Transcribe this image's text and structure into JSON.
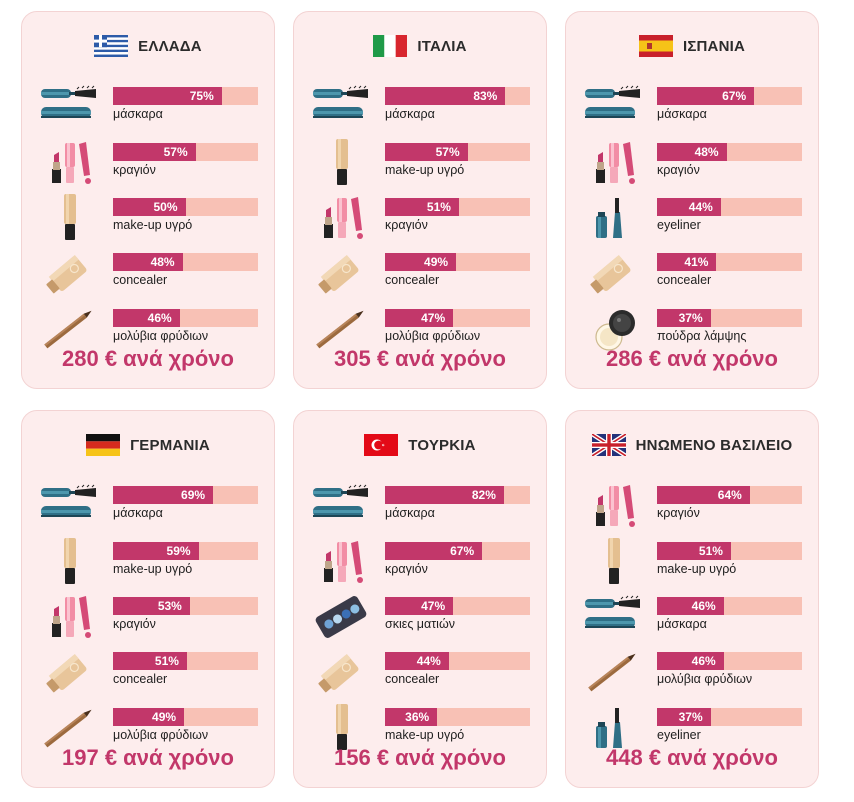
{
  "chart_data": [
    {
      "type": "bar",
      "title": "ΕΛΛΑΔΑ",
      "flag": "flag-greece",
      "categories": [
        "μάσκαρα",
        "κραγιόν",
        "make-up υγρό",
        "concealer",
        "μολύβια φρύδιων"
      ],
      "icons": [
        "mascara-icon",
        "lipstick-icon",
        "foundation-icon",
        "concealer-icon",
        "brow-pencil-icon"
      ],
      "values": [
        75,
        57,
        50,
        48,
        46
      ],
      "labels": [
        "75%",
        "57%",
        "50%",
        "48%",
        "46%"
      ],
      "ylim": [
        0,
        100
      ],
      "total": "280 € ανά χρόνο"
    },
    {
      "type": "bar",
      "title": "ΙΤΑΛΙΑ",
      "flag": "flag-italy",
      "categories": [
        "μάσκαρα",
        "make-up υγρό",
        "κραγιόν",
        "concealer",
        "μολύβια φρύδιων"
      ],
      "icons": [
        "mascara-icon",
        "foundation-icon",
        "lipstick-icon",
        "concealer-icon",
        "brow-pencil-icon"
      ],
      "values": [
        83,
        57,
        51,
        49,
        47
      ],
      "labels": [
        "83%",
        "57%",
        "51%",
        "49%",
        "47%"
      ],
      "ylim": [
        0,
        100
      ],
      "total": "305 € ανά χρόνο"
    },
    {
      "type": "bar",
      "title": "ΙΣΠΑΝΙΑ",
      "flag": "flag-spain",
      "categories": [
        "μάσκαρα",
        "κραγιόν",
        "eyeliner",
        "concealer",
        "πούδρα λάμψης"
      ],
      "icons": [
        "mascara-icon",
        "lipstick-icon",
        "eyeliner-icon",
        "concealer-icon",
        "powder-icon"
      ],
      "values": [
        67,
        48,
        44,
        41,
        37
      ],
      "labels": [
        "67%",
        "48%",
        "44%",
        "41%",
        "37%"
      ],
      "ylim": [
        0,
        100
      ],
      "total": "286 € ανά χρόνο"
    },
    {
      "type": "bar",
      "title": "ΓΕΡΜΑΝΙΑ",
      "flag": "flag-germany",
      "categories": [
        "μάσκαρα",
        "make-up υγρό",
        "κραγιόν",
        "concealer",
        "μολύβια φρύδιων"
      ],
      "icons": [
        "mascara-icon",
        "foundation-icon",
        "lipstick-icon",
        "concealer-icon",
        "brow-pencil-icon"
      ],
      "values": [
        69,
        59,
        53,
        51,
        49
      ],
      "labels": [
        "69%",
        "59%",
        "53%",
        "51%",
        "49%"
      ],
      "ylim": [
        0,
        100
      ],
      "total": "197 € ανά χρόνο"
    },
    {
      "type": "bar",
      "title": "ΤΟΥΡΚΙΑ",
      "flag": "flag-turkey",
      "categories": [
        "μάσκαρα",
        "κραγιόν",
        "σκιες ματιών",
        "concealer",
        "make-up υγρό"
      ],
      "icons": [
        "mascara-icon",
        "lipstick-icon",
        "eyeshadow-icon",
        "concealer-icon",
        "foundation-icon"
      ],
      "values": [
        82,
        67,
        47,
        44,
        36
      ],
      "labels": [
        "82%",
        "67%",
        "47%",
        "44%",
        "36%"
      ],
      "ylim": [
        0,
        100
      ],
      "total": "156 € ανά χρόνο"
    },
    {
      "type": "bar",
      "title": "ΗΝΩΜΕΝΟ ΒΑΣΙΛΕΙΟ",
      "flag": "flag-uk",
      "categories": [
        "κραγιόν",
        "make-up υγρό",
        "μάσκαρα",
        "μολύβια φρύδιων",
        "eyeliner"
      ],
      "icons": [
        "lipstick-icon",
        "foundation-icon",
        "mascara-icon",
        "brow-pencil-icon",
        "eyeliner-icon"
      ],
      "values": [
        64,
        51,
        46,
        46,
        37
      ],
      "labels": [
        "64%",
        "51%",
        "46%",
        "46%",
        "37%"
      ],
      "ylim": [
        0,
        100
      ],
      "total": "448 € ανά χρόνο"
    }
  ],
  "colors": {
    "card_background": "#fdeded",
    "bar_fill": "#c2376a",
    "bar_track": "#f8c1b5",
    "total_text": "#c2376a"
  }
}
